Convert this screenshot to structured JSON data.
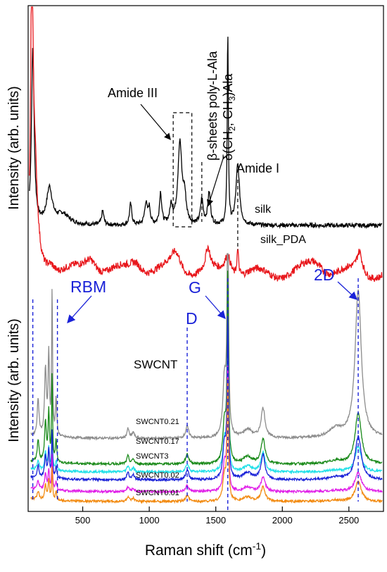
{
  "chart_data": {
    "type": "line",
    "xlabel": "Raman shift (cm",
    "xlabel_sup": "-1",
    "xlabel_close": ")",
    "xlim": [
      90,
      2760
    ],
    "xticks": [
      500,
      1000,
      1500,
      2000,
      2500
    ],
    "ylabel_top": "Intensity (arb. units)",
    "ylabel_bottom": "Intensity (arb. units)",
    "top_panel": {
      "series": [
        {
          "name": "silk",
          "color": "#000000",
          "baseline": 0.5,
          "peaks": [
            {
              "x": 125,
              "h": 1.0,
              "w": 12
            },
            {
              "x": 250,
              "h": 0.2,
              "w": 25
            },
            {
              "x": 350,
              "h": 0.06,
              "w": 60
            },
            {
              "x": 650,
              "h": 0.08,
              "w": 10
            },
            {
              "x": 860,
              "h": 0.12,
              "w": 10
            },
            {
              "x": 975,
              "h": 0.12,
              "w": 12
            },
            {
              "x": 1000,
              "h": 0.09,
              "w": 10
            },
            {
              "x": 1085,
              "h": 0.18,
              "w": 10
            },
            {
              "x": 1165,
              "h": 0.1,
              "w": 12
            },
            {
              "x": 1230,
              "h": 0.46,
              "w": 18
            },
            {
              "x": 1265,
              "h": 0.14,
              "w": 14
            },
            {
              "x": 1395,
              "h": 0.14,
              "w": 12
            },
            {
              "x": 1450,
              "h": 0.18,
              "w": 12
            },
            {
              "x": 1590,
              "h": 1.1,
              "w": 5
            },
            {
              "x": 1665,
              "h": 0.34,
              "w": 16
            }
          ]
        },
        {
          "name": "silk_PDA",
          "color": "#e8161b",
          "baseline": 0.22,
          "peaks": [
            {
              "x": 118,
              "h": 1.65,
              "w": 10
            },
            {
              "x": 140,
              "h": 0.55,
              "w": 25
            },
            {
              "x": 260,
              "h": 0.06,
              "w": 40
            },
            {
              "x": 560,
              "h": 0.1,
              "w": 60
            },
            {
              "x": 900,
              "h": 0.08,
              "w": 60
            },
            {
              "x": 1200,
              "h": 0.12,
              "w": 50
            },
            {
              "x": 1440,
              "h": 0.12,
              "w": 20
            },
            {
              "x": 1590,
              "h": 0.12,
              "w": 30
            },
            {
              "x": 1665,
              "h": 0.15,
              "w": 8
            },
            {
              "x": 2250,
              "h": 0.07,
              "w": 90
            },
            {
              "x": 2580,
              "h": 0.12,
              "w": 25
            }
          ]
        }
      ],
      "annotations": {
        "amide_iii": "Amide III",
        "beta_sheets": "β-sheets poly-L-Ala",
        "delta": "δ(CH",
        "delta_sub1": "2",
        "delta_mid": ", CH",
        "delta_sub2": "3",
        "delta_end": ")Ala",
        "amide_i": "Amide I"
      }
    },
    "bottom_panel": {
      "series": [
        {
          "name": "SWCNT",
          "color": "#8c8c8c",
          "baseline": 0.37,
          "g_height": 1.3,
          "d_height": 0.06,
          "twod_height": 0.75,
          "rbm_height": 0.75
        },
        {
          "name": "SWCNT0.21",
          "color": "#1a8a1a",
          "baseline": 0.24,
          "g_height": 0.95,
          "d_height": 0.05,
          "twod_height": 0.26,
          "rbm_height": 0.45
        },
        {
          "name": "SWCNT0.17",
          "color": "#22e0e8",
          "baseline": 0.2,
          "g_height": 0.7,
          "d_height": 0.04,
          "twod_height": 0.13,
          "rbm_height": 0.2
        },
        {
          "name": "SWCNT3",
          "color": "#1a22d8",
          "baseline": 0.16,
          "g_height": 0.8,
          "d_height": 0.05,
          "twod_height": 0.22,
          "rbm_height": 0.25
        },
        {
          "name": "SWCNT0.02",
          "color": "#e020e8",
          "baseline": 0.1,
          "g_height": 0.62,
          "d_height": 0.03,
          "twod_height": 0.1,
          "rbm_height": 0.18
        },
        {
          "name": "SWCNT0.01",
          "color": "#f28a10",
          "baseline": 0.05,
          "g_height": 0.6,
          "d_height": 0.03,
          "twod_height": 0.1,
          "rbm_height": 0.17
        }
      ],
      "band_labels": {
        "rbm": "RBM",
        "g": "G",
        "d": "D",
        "twod": "2D"
      },
      "band_positions": {
        "rbm_left": 125,
        "rbm_right": 310,
        "d": 1285,
        "g": 1590,
        "twod": 2570
      }
    }
  }
}
